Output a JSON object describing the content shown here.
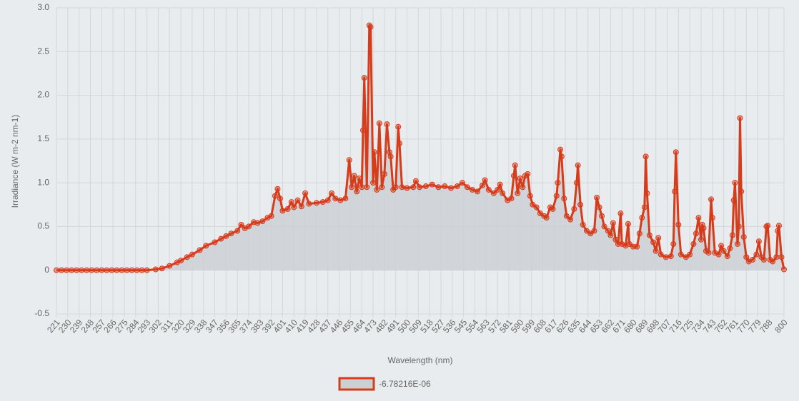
{
  "chart_data": {
    "type": "line",
    "x_label": "Wavelength (nm)",
    "y_label": "Irradiance (W m-2 nm-1)",
    "xlim": [
      221,
      800
    ],
    "xticks": [
      221,
      230,
      239,
      248,
      257,
      266,
      275,
      284,
      293,
      302,
      311,
      320,
      329,
      338,
      347,
      356,
      365,
      374,
      383,
      392,
      401,
      410,
      419,
      428,
      437,
      446,
      455,
      464,
      473,
      482,
      491,
      500,
      509,
      518,
      527,
      536,
      545,
      554,
      563,
      572,
      581,
      590,
      599,
      608,
      617,
      626,
      635,
      644,
      653,
      662,
      671,
      680,
      689,
      698,
      707,
      716,
      725,
      734,
      743,
      752,
      761,
      770,
      779,
      788,
      800
    ],
    "ylim": [
      -0.5,
      3.0
    ],
    "yticks": [
      -0.5,
      0,
      0.5,
      {
        "value": 1,
        "label": "1.0"
      },
      1.5,
      {
        "value": 2,
        "label": "2.0"
      },
      2.5,
      {
        "value": 3,
        "label": "3.0"
      }
    ],
    "grid": true,
    "fill": true,
    "fill_color": "#cdd0d3",
    "legend": "bottom",
    "x": [
      221,
      225,
      229,
      233,
      237,
      241,
      245,
      249,
      253,
      257,
      261,
      265,
      269,
      273,
      277,
      281,
      285,
      289,
      293,
      300,
      305,
      311,
      317,
      320,
      325,
      329,
      335,
      340,
      347,
      352,
      356,
      360,
      365,
      368,
      371,
      374,
      378,
      381,
      385,
      389,
      392,
      395,
      397,
      399,
      401,
      405,
      408,
      410,
      413,
      416,
      419,
      422,
      428,
      433,
      437,
      440,
      443,
      447,
      451,
      454,
      456,
      458,
      460,
      462,
      464,
      465,
      466,
      468,
      470,
      471,
      473,
      474,
      476,
      478,
      480,
      482,
      484,
      486,
      487,
      489,
      491,
      493,
      494,
      496,
      500,
      505,
      507,
      510,
      515,
      520,
      525,
      530,
      535,
      540,
      544,
      548,
      552,
      556,
      560,
      562,
      565,
      569,
      572,
      574,
      576,
      580,
      583,
      585,
      586,
      588,
      590,
      592,
      594,
      596,
      598,
      600,
      603,
      606,
      609,
      611,
      614,
      616,
      619,
      620,
      622,
      623,
      625,
      627,
      630,
      633,
      635,
      636,
      638,
      640,
      643,
      646,
      649,
      651,
      653,
      655,
      657,
      660,
      662,
      664,
      666,
      668,
      670,
      671,
      674,
      676,
      677,
      680,
      683,
      685,
      687,
      689,
      690,
      691,
      693,
      696,
      698,
      700,
      702,
      706,
      710,
      712,
      713,
      714,
      716,
      718,
      722,
      725,
      728,
      730,
      732,
      734,
      735,
      736,
      738,
      740,
      742,
      743,
      745,
      748,
      750,
      752,
      755,
      757,
      759,
      760,
      761,
      763,
      764,
      765,
      766,
      768,
      770,
      772,
      775,
      778,
      780,
      782,
      784,
      786,
      787,
      789,
      791,
      794,
      795,
      796,
      798,
      800
    ],
    "series": [
      {
        "name": "-6.78216E-06",
        "color": "#d63b1a",
        "values": [
          -6.78216e-06,
          0,
          0,
          0,
          0,
          0,
          0,
          0,
          0,
          0,
          0,
          0,
          0,
          0,
          0,
          0,
          0,
          0,
          0,
          0.01,
          0.02,
          0.05,
          0.09,
          0.11,
          0.15,
          0.18,
          0.23,
          0.28,
          0.32,
          0.36,
          0.39,
          0.42,
          0.45,
          0.52,
          0.48,
          0.5,
          0.55,
          0.54,
          0.56,
          0.6,
          0.62,
          0.85,
          0.93,
          0.82,
          0.68,
          0.7,
          0.78,
          0.72,
          0.8,
          0.73,
          0.88,
          0.76,
          0.77,
          0.78,
          0.8,
          0.88,
          0.82,
          0.8,
          0.82,
          1.26,
          0.95,
          1.08,
          0.9,
          1.05,
          0.95,
          1.6,
          2.2,
          0.95,
          2.8,
          2.78,
          1.0,
          1.35,
          0.92,
          1.68,
          0.95,
          1.1,
          1.67,
          1.35,
          1.3,
          0.92,
          0.95,
          1.64,
          1.45,
          0.95,
          0.94,
          0.95,
          1.02,
          0.95,
          0.96,
          0.98,
          0.95,
          0.96,
          0.94,
          0.96,
          1.0,
          0.95,
          0.92,
          0.9,
          0.97,
          1.03,
          0.92,
          0.88,
          0.92,
          0.98,
          0.88,
          0.8,
          0.82,
          1.08,
          1.2,
          0.88,
          1.05,
          0.95,
          1.08,
          1.1,
          0.85,
          0.75,
          0.72,
          0.65,
          0.62,
          0.6,
          0.72,
          0.7,
          0.85,
          1.0,
          1.38,
          1.3,
          0.82,
          0.62,
          0.58,
          0.7,
          1.0,
          1.2,
          0.75,
          0.52,
          0.45,
          0.42,
          0.45,
          0.83,
          0.72,
          0.62,
          0.5,
          0.45,
          0.4,
          0.54,
          0.35,
          0.3,
          0.65,
          0.3,
          0.28,
          0.53,
          0.3,
          0.27,
          0.27,
          0.42,
          0.6,
          0.72,
          1.3,
          0.88,
          0.4,
          0.32,
          0.22,
          0.37,
          0.18,
          0.15,
          0.16,
          0.3,
          0.9,
          1.35,
          0.52,
          0.18,
          0.15,
          0.18,
          0.3,
          0.42,
          0.6,
          0.35,
          0.52,
          0.48,
          0.22,
          0.2,
          0.81,
          0.6,
          0.2,
          0.18,
          0.28,
          0.22,
          0.16,
          0.25,
          0.4,
          0.8,
          1.0,
          0.3,
          0.5,
          1.74,
          0.9,
          0.38,
          0.15,
          0.1,
          0.12,
          0.18,
          0.33,
          0.15,
          0.12,
          0.5,
          0.51,
          0.12,
          0.1,
          0.15,
          0.45,
          0.51,
          0.15,
          0.01
        ]
      }
    ]
  }
}
